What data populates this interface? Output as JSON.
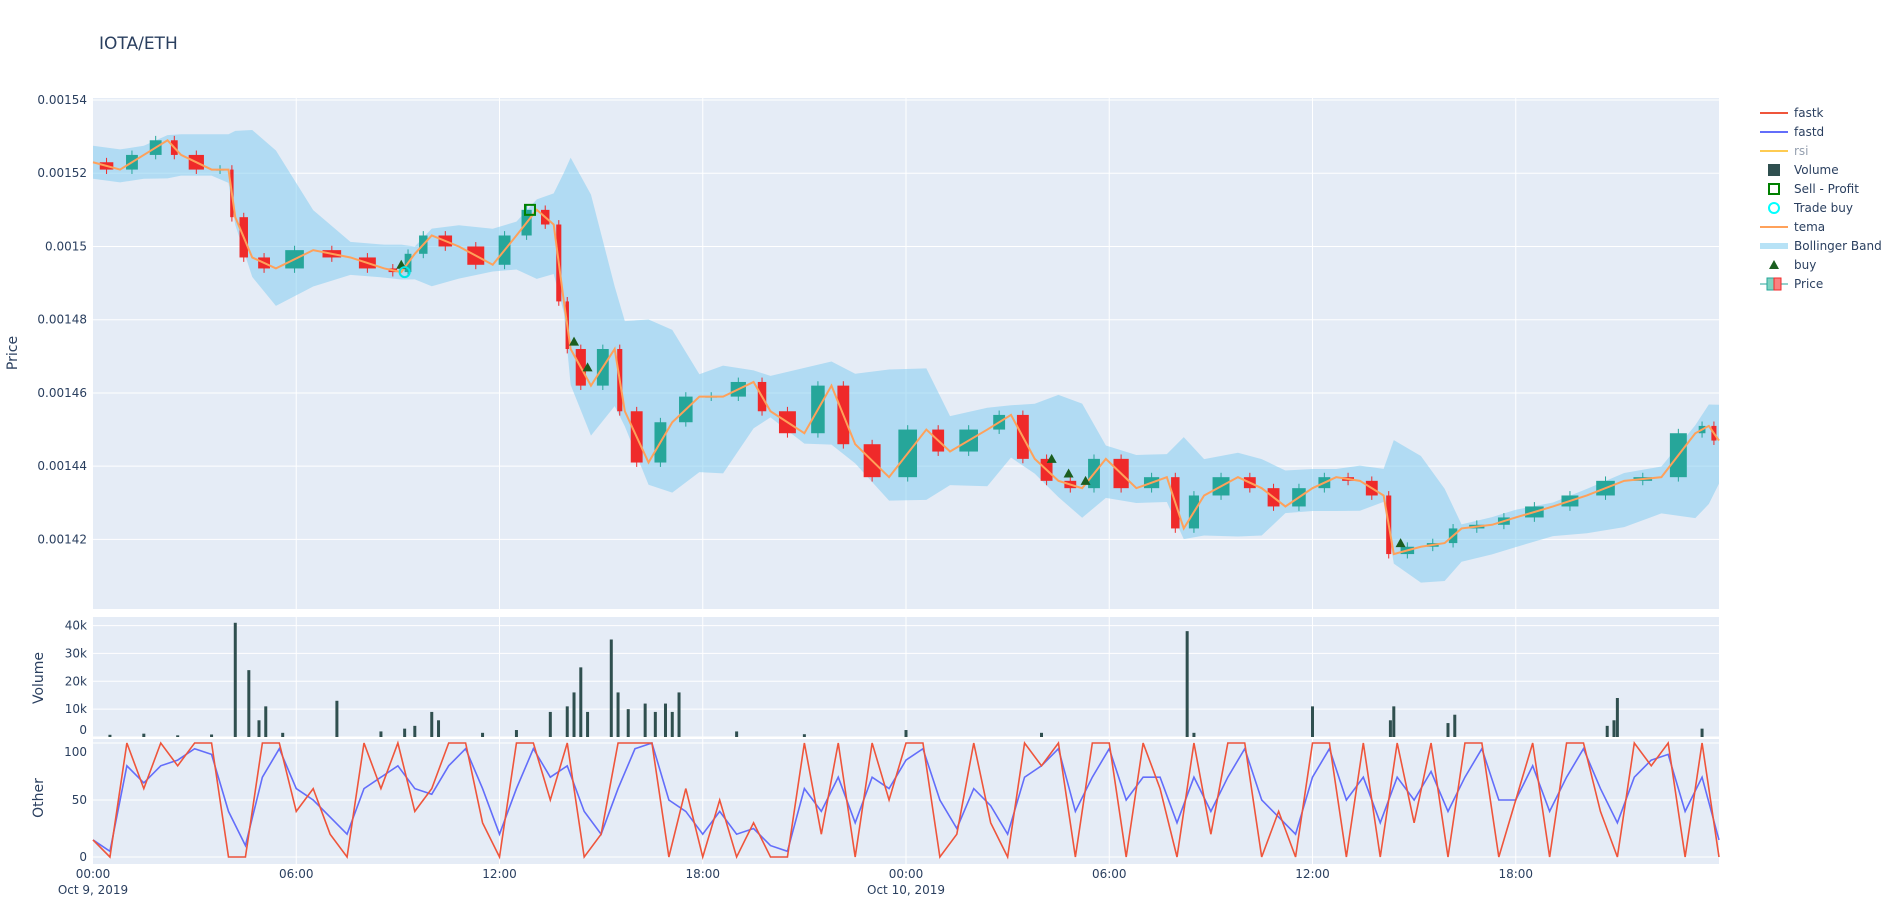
{
  "title": "IOTA/ETH",
  "chart_data": {
    "type": "candlestick",
    "x_ticks": [
      {
        "h": 0,
        "l1": "00:00",
        "l2": "Oct 9, 2019"
      },
      {
        "h": 6,
        "l1": "06:00",
        "l2": ""
      },
      {
        "h": 12,
        "l1": "12:00",
        "l2": ""
      },
      {
        "h": 18,
        "l1": "18:00",
        "l2": ""
      },
      {
        "h": 24,
        "l1": "00:00",
        "l2": "Oct 10, 2019"
      },
      {
        "h": 30,
        "l1": "06:00",
        "l2": ""
      },
      {
        "h": 36,
        "l1": "12:00",
        "l2": ""
      },
      {
        "h": 42,
        "l1": "18:00",
        "l2": ""
      }
    ],
    "x_range_hours_from_oct9": [
      0,
      48
    ],
    "price_panel": {
      "ylabel": "Price",
      "ylim": [
        0.001401,
        0.00154
      ],
      "ticks": [
        "0.00142",
        "0.00144",
        "0.00146",
        "0.00148",
        "0.0015",
        "0.00152",
        "0.00154"
      ],
      "close": [
        [
          0,
          0.001523
        ],
        [
          0.8,
          0.001521
        ],
        [
          1.5,
          0.001525
        ],
        [
          2.2,
          0.001529
        ],
        [
          2.6,
          0.001525
        ],
        [
          3.5,
          0.001521
        ],
        [
          4,
          0.001521
        ],
        [
          4.2,
          0.001508
        ],
        [
          4.7,
          0.001497
        ],
        [
          5.4,
          0.001494
        ],
        [
          6.5,
          0.001499
        ],
        [
          7.6,
          0.001497
        ],
        [
          8.6,
          0.001494
        ],
        [
          9.1,
          0.001493
        ],
        [
          9.5,
          0.001498
        ],
        [
          10,
          0.001503
        ],
        [
          10.8,
          0.0015
        ],
        [
          11.8,
          0.001495
        ],
        [
          12.5,
          0.001503
        ],
        [
          13.1,
          0.00151
        ],
        [
          13.6,
          0.001506
        ],
        [
          13.9,
          0.001485
        ],
        [
          14.1,
          0.001472
        ],
        [
          14.7,
          0.001462
        ],
        [
          15.4,
          0.001472
        ],
        [
          15.7,
          0.001455
        ],
        [
          16.4,
          0.001441
        ],
        [
          17.1,
          0.001452
        ],
        [
          17.9,
          0.001459
        ],
        [
          18.6,
          0.001459
        ],
        [
          19.5,
          0.001463
        ],
        [
          20,
          0.001455
        ],
        [
          21,
          0.001449
        ],
        [
          21.8,
          0.001462
        ],
        [
          22.5,
          0.001446
        ],
        [
          23.5,
          0.001437
        ],
        [
          24.6,
          0.00145
        ],
        [
          25.3,
          0.001444
        ],
        [
          26.4,
          0.00145
        ],
        [
          27.1,
          0.001454
        ],
        [
          27.8,
          0.001442
        ],
        [
          28.5,
          0.001436
        ],
        [
          29.2,
          0.001434
        ],
        [
          29.9,
          0.001442
        ],
        [
          30.8,
          0.001434
        ],
        [
          31.7,
          0.001437
        ],
        [
          32.2,
          0.001423
        ],
        [
          32.8,
          0.001432
        ],
        [
          33.8,
          0.001437
        ],
        [
          34.5,
          0.001434
        ],
        [
          35.2,
          0.001429
        ],
        [
          36,
          0.001434
        ],
        [
          36.7,
          0.001437
        ],
        [
          37.4,
          0.001436
        ],
        [
          38.1,
          0.001432
        ],
        [
          38.4,
          0.001416
        ],
        [
          39.2,
          0.001418
        ],
        [
          39.9,
          0.001419
        ],
        [
          40.4,
          0.001423
        ],
        [
          41.3,
          0.001424
        ],
        [
          42,
          0.001426
        ],
        [
          43.1,
          0.001429
        ],
        [
          44.1,
          0.001432
        ],
        [
          45.2,
          0.001436
        ],
        [
          46.3,
          0.001437
        ],
        [
          47.3,
          0.001449
        ],
        [
          47.7,
          0.001451
        ],
        [
          48,
          0.001447
        ]
      ],
      "buy": [
        [
          9.1,
          0.001495
        ],
        [
          14.2,
          0.001474
        ],
        [
          14.6,
          0.001467
        ],
        [
          28.3,
          0.001442
        ],
        [
          28.8,
          0.001438
        ],
        [
          29.3,
          0.001436
        ],
        [
          38.6,
          0.001419
        ]
      ],
      "sell_profit": [
        [
          12.9,
          0.00151
        ]
      ],
      "trade_buy": [
        [
          9.2,
          0.001493
        ]
      ]
    },
    "volume_panel": {
      "ylabel": "Volume",
      "ylim": [
        0,
        42000
      ],
      "ticks": [
        {
          "v": 0,
          "l": "0"
        },
        {
          "v": 10000,
          "l": "10k"
        },
        {
          "v": 20000,
          "l": "20k"
        },
        {
          "v": 30000,
          "l": "30k"
        },
        {
          "v": 40000,
          "l": "40k"
        }
      ],
      "bars": [
        [
          0.5,
          800
        ],
        [
          1.5,
          1200
        ],
        [
          2.5,
          600
        ],
        [
          3.5,
          900
        ],
        [
          4.2,
          41000
        ],
        [
          4.6,
          24000
        ],
        [
          4.9,
          6000
        ],
        [
          5.1,
          11000
        ],
        [
          5.6,
          1500
        ],
        [
          7.2,
          13000
        ],
        [
          8.5,
          2000
        ],
        [
          9.2,
          3000
        ],
        [
          9.5,
          4000
        ],
        [
          10,
          9000
        ],
        [
          10.2,
          6000
        ],
        [
          11.5,
          1500
        ],
        [
          12.5,
          2500
        ],
        [
          13.5,
          9000
        ],
        [
          14,
          11000
        ],
        [
          14.2,
          16000
        ],
        [
          14.4,
          25000
        ],
        [
          14.6,
          9000
        ],
        [
          15.3,
          35000
        ],
        [
          15.5,
          16000
        ],
        [
          15.8,
          10000
        ],
        [
          16.3,
          12000
        ],
        [
          16.6,
          9000
        ],
        [
          16.9,
          12000
        ],
        [
          17.3,
          16000
        ],
        [
          17.1,
          9000
        ],
        [
          19,
          2000
        ],
        [
          21,
          1000
        ],
        [
          24,
          2500
        ],
        [
          28,
          1500
        ],
        [
          32.3,
          38000
        ],
        [
          32.5,
          1500
        ],
        [
          36,
          11000
        ],
        [
          38.3,
          6000
        ],
        [
          38.4,
          11000
        ],
        [
          40,
          5000
        ],
        [
          40.2,
          8000
        ],
        [
          44.7,
          4000
        ],
        [
          44.9,
          6000
        ],
        [
          45,
          14000
        ],
        [
          47.5,
          3000
        ]
      ]
    },
    "other_panel": {
      "ylabel": "Other",
      "ylim": [
        0,
        100
      ],
      "ticks": [
        "0",
        "50",
        "100"
      ],
      "fastk": [
        15,
        0,
        100,
        60,
        100,
        80,
        100,
        100,
        0,
        0,
        100,
        100,
        40,
        60,
        20,
        0,
        100,
        60,
        100,
        40,
        60,
        100,
        100,
        30,
        0,
        100,
        100,
        50,
        100,
        0,
        20,
        100,
        100,
        100,
        0,
        60,
        0,
        50,
        0,
        30,
        0,
        0,
        100,
        20,
        100,
        0,
        100,
        50,
        100,
        100,
        0,
        20,
        100,
        30,
        0,
        100,
        80,
        100,
        0,
        100,
        100,
        0,
        100,
        60,
        0,
        100,
        20,
        100,
        100,
        0,
        40,
        0,
        100,
        100,
        0,
        100,
        0,
        100,
        30,
        100,
        0,
        100,
        100,
        0,
        50,
        100,
        0,
        100,
        100,
        40,
        0,
        100,
        80,
        100,
        0,
        100,
        0
      ],
      "fastd": [
        15,
        5,
        80,
        65,
        80,
        85,
        95,
        90,
        40,
        10,
        70,
        95,
        60,
        50,
        35,
        20,
        60,
        70,
        80,
        60,
        55,
        80,
        95,
        60,
        20,
        60,
        95,
        70,
        80,
        40,
        20,
        60,
        95,
        100,
        50,
        40,
        20,
        40,
        20,
        25,
        10,
        5,
        60,
        40,
        70,
        30,
        70,
        60,
        85,
        95,
        50,
        25,
        60,
        45,
        20,
        70,
        80,
        95,
        40,
        70,
        95,
        50,
        70,
        70,
        30,
        70,
        40,
        70,
        95,
        50,
        35,
        20,
        70,
        95,
        50,
        70,
        30,
        70,
        50,
        75,
        40,
        70,
        95,
        50,
        50,
        80,
        40,
        70,
        95,
        60,
        30,
        70,
        85,
        90,
        40,
        70,
        15
      ]
    },
    "legend": {
      "placement": "top-right",
      "entries": [
        {
          "name": "fastk",
          "color": "#ef553b",
          "kind": "line"
        },
        {
          "name": "fastd",
          "color": "#636efa",
          "kind": "line"
        },
        {
          "name": "rsi",
          "color": "#fecb52",
          "kind": "line",
          "muted": true
        },
        {
          "name": "Volume",
          "color": "#2f4f4f",
          "kind": "bar"
        },
        {
          "name": "Sell - Profit",
          "color": "#008000",
          "kind": "square"
        },
        {
          "name": "Trade buy",
          "color": "#00ffff",
          "kind": "circle"
        },
        {
          "name": "tema",
          "color": "#ffa15a",
          "kind": "line"
        },
        {
          "name": "Bollinger Band",
          "color": "#87cef0",
          "kind": "band"
        },
        {
          "name": "buy",
          "color": "#1b5e20",
          "kind": "triangle"
        },
        {
          "name": "Price",
          "color": "#26a69a",
          "kind": "candle"
        }
      ]
    },
    "colors": {
      "up": "#26a69a",
      "down": "#ef2a2a",
      "plot_bg": "#e5ecf6",
      "grid": "#ffffff"
    }
  }
}
